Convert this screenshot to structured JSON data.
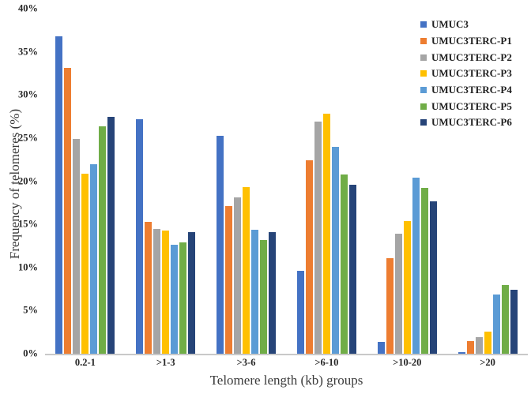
{
  "chart_data": {
    "type": "bar",
    "title": "",
    "xlabel": "Telomere length (kb) groups",
    "ylabel": "Frequency of telomeres (%)",
    "ylim": [
      0,
      40
    ],
    "grid": false,
    "legend_position": "top-right",
    "yticks": [
      {
        "value": 0,
        "label": "0%"
      },
      {
        "value": 5,
        "label": "5%"
      },
      {
        "value": 10,
        "label": "10%"
      },
      {
        "value": 15,
        "label": "15%"
      },
      {
        "value": 20,
        "label": "20%"
      },
      {
        "value": 25,
        "label": "25%"
      },
      {
        "value": 30,
        "label": "30%"
      },
      {
        "value": 35,
        "label": "35%"
      },
      {
        "value": 40,
        "label": "40%"
      }
    ],
    "categories": [
      "0.2-1",
      ">1-3",
      ">3-6",
      ">6-10",
      ">10-20",
      ">20"
    ],
    "series": [
      {
        "name": "UMUC3",
        "color": "#4472C4",
        "values": [
          36.8,
          27.2,
          25.3,
          9.6,
          1.4,
          0.2
        ]
      },
      {
        "name": "UMUC3TERC-P1",
        "color": "#ED7D31",
        "values": [
          33.1,
          15.3,
          17.1,
          22.4,
          11.1,
          1.5
        ]
      },
      {
        "name": "UMUC3TERC-P2",
        "color": "#A5A5A5",
        "values": [
          24.9,
          14.5,
          18.1,
          26.9,
          13.9,
          1.9
        ]
      },
      {
        "name": "UMUC3TERC-P3",
        "color": "#FFC000",
        "values": [
          20.9,
          14.3,
          19.3,
          27.8,
          15.4,
          2.6
        ]
      },
      {
        "name": "UMUC3TERC-P4",
        "color": "#5B9BD5",
        "values": [
          22.0,
          12.6,
          14.4,
          24.0,
          20.4,
          6.9
        ]
      },
      {
        "name": "UMUC3TERC-P5",
        "color": "#70AD47",
        "values": [
          26.4,
          12.9,
          13.2,
          20.8,
          19.2,
          8.0
        ]
      },
      {
        "name": "UMUC3TERC-P6",
        "color": "#264478",
        "values": [
          27.5,
          14.1,
          14.1,
          19.6,
          17.7,
          7.4
        ]
      }
    ],
    "axis_line_color": "#c9c9c9"
  }
}
